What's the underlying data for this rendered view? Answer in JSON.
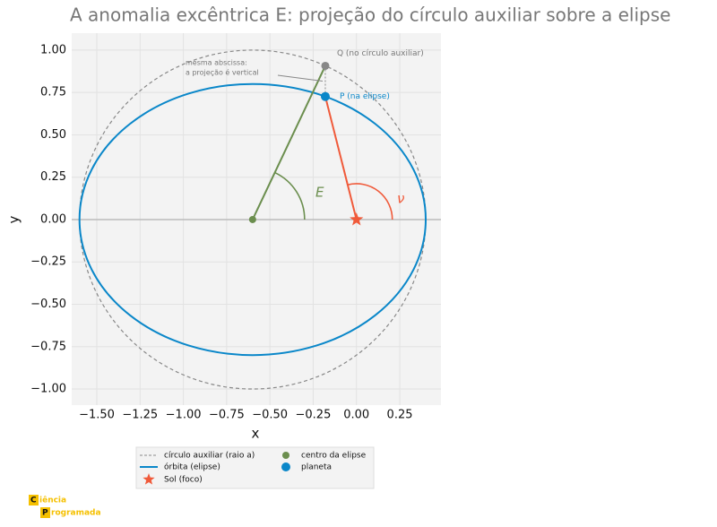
{
  "chart_data": {
    "type": "orbit",
    "title": "A anomalia excêntrica E: projeção do círculo auxiliar sobre a elipse",
    "xlabel": "x",
    "ylabel": "y",
    "xlim": [
      -1.645,
      0.488
    ],
    "ylim": [
      -1.095,
      1.1
    ],
    "xticks": [
      {
        "value": -1.5,
        "label": "−1.50"
      },
      {
        "value": -1.25,
        "label": "−1.25"
      },
      {
        "value": -1.0,
        "label": "−1.00"
      },
      {
        "value": -0.75,
        "label": "−0.75"
      },
      {
        "value": -0.5,
        "label": "−0.50"
      },
      {
        "value": -0.25,
        "label": "−0.25"
      },
      {
        "value": 0,
        "label": "0.00"
      },
      {
        "value": 0.25,
        "label": "0.25"
      }
    ],
    "yticks": [
      {
        "value": -1.0,
        "label": "−1.00"
      },
      {
        "value": -0.75,
        "label": "−0.75"
      },
      {
        "value": -0.5,
        "label": "−0.50"
      },
      {
        "value": -0.25,
        "label": "−0.25"
      },
      {
        "value": 0,
        "label": "0.00"
      },
      0.25,
      {
        "value": 0.5,
        "label": "0.50"
      },
      0.75,
      {
        "value": 1.0,
        "label": "1.00"
      }
    ],
    "grid": true,
    "series": [
      {
        "name": "círculo auxiliar (raio a)",
        "color": "#888888",
        "center": [
          -0.6,
          0
        ],
        "radius": 1
      },
      {
        "name": "órbita (elipse)",
        "color": "#0a87c9",
        "center": [
          -0.6,
          0
        ],
        "a": 1,
        "b": 0.8
      },
      {
        "name": "Sol (foco)",
        "color": "#f05a3a",
        "x": 0,
        "y": 0
      },
      {
        "name": "centro da elipse",
        "color": "#6b8e4e",
        "x": -0.6,
        "y": 0
      },
      {
        "name": "planeta",
        "color": "#0a87c9",
        "x": -0.18,
        "y": 0.726
      }
    ],
    "q_point": {
      "x": -0.18,
      "y": 0.907
    },
    "annotations": {
      "q": "Q (no círculo auxiliar)",
      "p": "P (na elipse)",
      "note": [
        "mesma abscissa:",
        "a projeção é vertical"
      ],
      "E": "E",
      "nu": "ν"
    }
  },
  "logo": {
    "c": "C",
    "c_rest": "iência",
    "p": "P",
    "p_rest": "rogramada"
  }
}
